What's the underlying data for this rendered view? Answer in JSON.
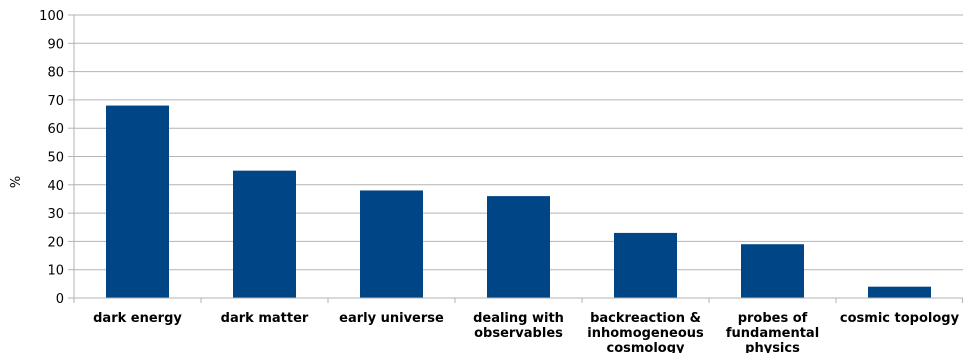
{
  "chart_data": {
    "type": "bar",
    "title": "",
    "xlabel": "",
    "ylabel": "%",
    "ylim": [
      0,
      100
    ],
    "yticks": [
      0,
      10,
      20,
      30,
      40,
      50,
      60,
      70,
      80,
      90,
      100
    ],
    "grid": true,
    "legend": "none",
    "bar_color": "#004586",
    "categories": [
      "dark energy",
      "dark matter",
      "early universe",
      "dealing with observables",
      "backreaction & inhomogeneous cosmology",
      "probes of fundamental physics",
      "cosmic topology"
    ],
    "category_lines": [
      [
        "dark energy"
      ],
      [
        "dark matter"
      ],
      [
        "early universe"
      ],
      [
        "dealing with",
        "observables"
      ],
      [
        "backreaction &",
        "inhomogeneous",
        "cosmology"
      ],
      [
        "probes of",
        "fundamental",
        "physics"
      ],
      [
        "cosmic topology"
      ]
    ],
    "values": [
      68,
      45,
      38,
      36,
      23,
      19,
      4
    ]
  }
}
